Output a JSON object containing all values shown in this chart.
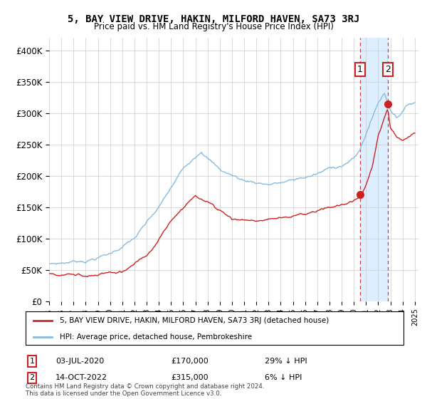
{
  "title": "5, BAY VIEW DRIVE, HAKIN, MILFORD HAVEN, SA73 3RJ",
  "subtitle": "Price paid vs. HM Land Registry's House Price Index (HPI)",
  "hpi_color": "#88bbdd",
  "price_color": "#cc2222",
  "ylim": [
    0,
    420000
  ],
  "yticks": [
    0,
    50000,
    100000,
    150000,
    200000,
    250000,
    300000,
    350000,
    400000
  ],
  "ytick_labels": [
    "£0",
    "£50K",
    "£100K",
    "£150K",
    "£200K",
    "£250K",
    "£300K",
    "£350K",
    "£400K"
  ],
  "xlim_start": 1995,
  "xlim_end": 2025.3,
  "sale1_x": 2020.5,
  "sale1_y": 170000,
  "sale2_x": 2022.79,
  "sale2_y": 315000,
  "shaded_color": "#ddeeff",
  "hatch_color": "#cccccc",
  "legend_price_label": "5, BAY VIEW DRIVE, HAKIN, MILFORD HAVEN, SA73 3RJ (detached house)",
  "legend_hpi_label": "HPI: Average price, detached house, Pembrokeshire",
  "table": [
    {
      "num": "1",
      "date": "03-JUL-2020",
      "price": "£170,000",
      "pct": "29% ↓ HPI"
    },
    {
      "num": "2",
      "date": "14-OCT-2022",
      "price": "£315,000",
      "pct": "6% ↓ HPI"
    }
  ],
  "footer": "Contains HM Land Registry data © Crown copyright and database right 2024.\nThis data is licensed under the Open Government Licence v3.0.",
  "background_color": "#ffffff",
  "grid_color": "#cccccc"
}
